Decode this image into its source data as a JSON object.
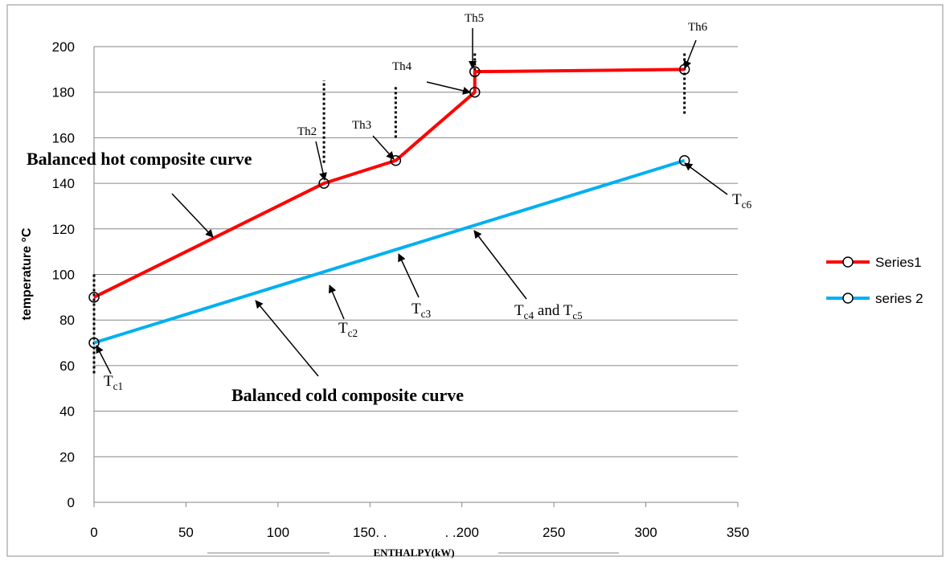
{
  "chart_data": {
    "type": "line",
    "title": "",
    "xlabel": "ENTHALPY(kW)",
    "ylabel": "temperature °C",
    "xlim": [
      0,
      350
    ],
    "ylim": [
      0,
      200
    ],
    "x_ticks": [
      0,
      50,
      100,
      150,
      200,
      250,
      300,
      350
    ],
    "y_ticks": [
      0,
      20,
      40,
      60,
      80,
      100,
      120,
      140,
      160,
      180,
      200
    ],
    "x_tick_labels": [
      "0",
      "50",
      "100",
      "150. .",
      ". .200",
      "250",
      "300",
      "350"
    ],
    "y_tick_labels": [
      "0",
      "20",
      "40",
      "60",
      "80",
      "100",
      "120",
      "140",
      "160",
      "180",
      "200"
    ],
    "grid": "horizontal",
    "legend_position": "right",
    "series": [
      {
        "name": "Series1",
        "color": "#ff0000",
        "x": [
          0,
          125,
          164,
          207,
          207,
          321
        ],
        "y": [
          90,
          140,
          150,
          180,
          189,
          190
        ]
      },
      {
        "name": "series 2",
        "color": "#00b0f0",
        "x": [
          0,
          321
        ],
        "y": [
          70,
          150
        ]
      }
    ],
    "point_labels": [
      {
        "text": "Th2",
        "x": 125,
        "y": 140
      },
      {
        "text": "Th3",
        "x": 164,
        "y": 150
      },
      {
        "text": "Th4",
        "x": 207,
        "y": 180
      },
      {
        "text": "Th5",
        "x": 207,
        "y": 189
      },
      {
        "text": "Th6",
        "x": 321,
        "y": 190
      },
      {
        "text": "T",
        "sub": "c1",
        "x": 0,
        "y": 70
      },
      {
        "text": "T",
        "sub": "c2",
        "x": 125,
        "y": 101
      },
      {
        "text": "T",
        "sub": "c3",
        "x": 164,
        "y": 111
      },
      {
        "text": "T",
        "and": "and T",
        "sub": "c4",
        "sub2": "c5",
        "x": 207,
        "y": 122
      },
      {
        "text": "T",
        "sub": "c6",
        "x": 321,
        "y": 150
      }
    ],
    "annotations": {
      "hot_curve": "Balanced hot composite curve",
      "cold_curve": "Balanced cold composite curve"
    }
  }
}
